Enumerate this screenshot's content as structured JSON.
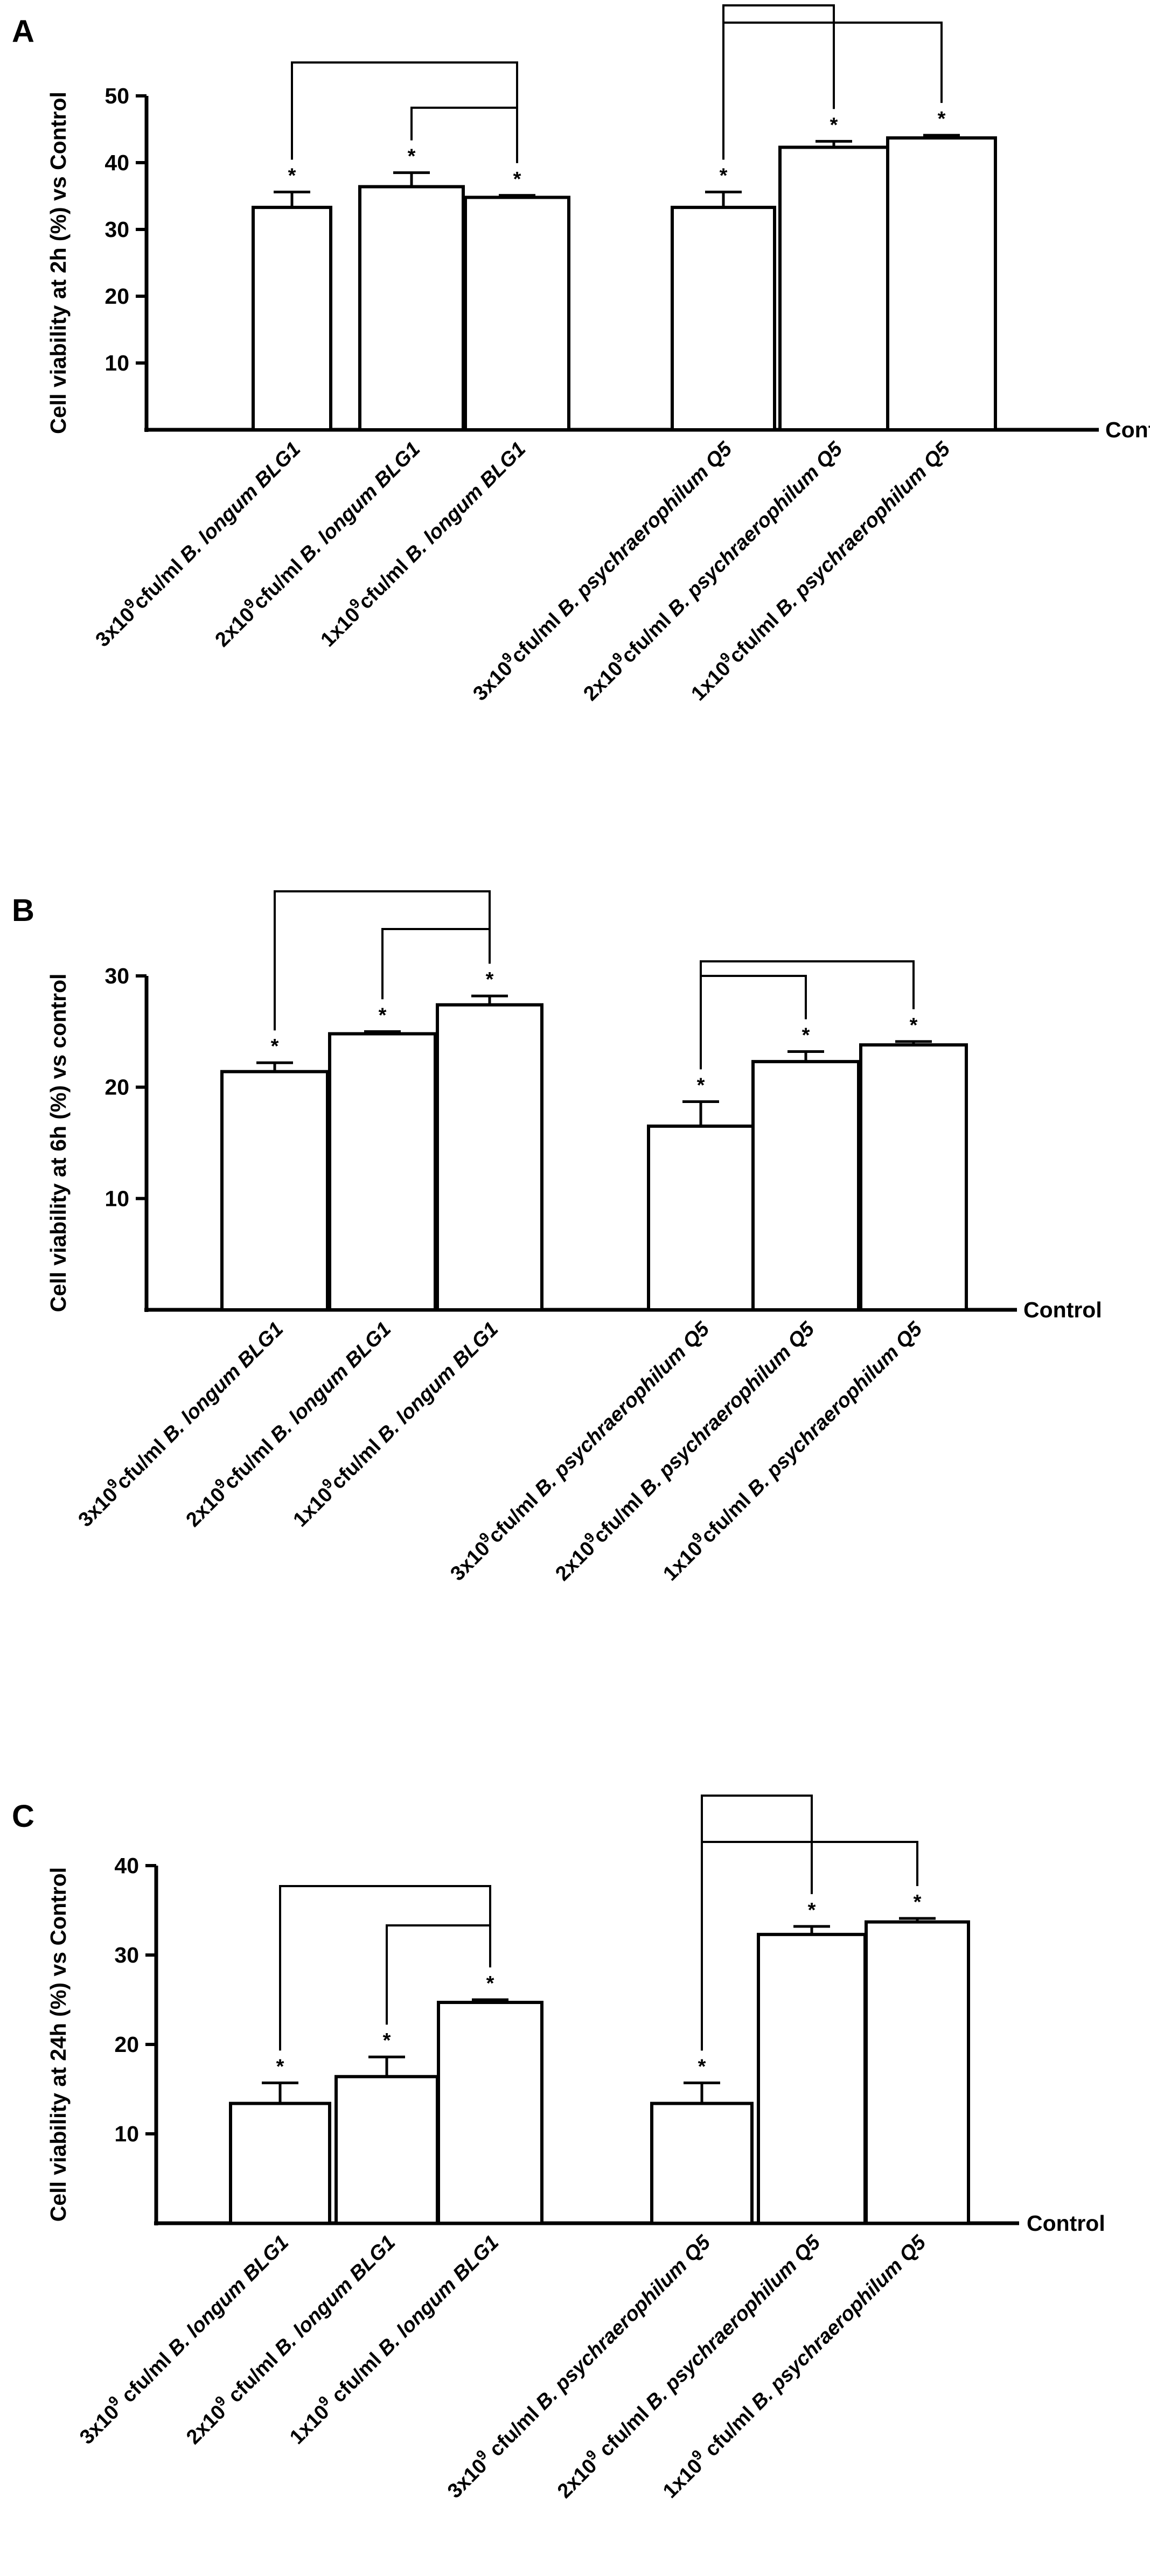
{
  "chart_data": [
    {
      "panel": "A",
      "type": "bar",
      "ylabel": "Cell viability at 2h (%) vs Control",
      "baseline_label": "Control",
      "yticks": [
        10,
        20,
        30,
        40,
        50
      ],
      "ylim": [
        0,
        50
      ],
      "categories": [
        {
          "prefix": "3x10",
          "sup": "9",
          "mid": "cfu/ml ",
          "species": "B. longum BLG1"
        },
        {
          "prefix": "2x10",
          "sup": "9",
          "mid": "cfu/ml ",
          "species": "B. longum BLG1"
        },
        {
          "prefix": "1x10",
          "sup": "9",
          "mid": "cfu/ml ",
          "species": "B. longum BLG1"
        },
        {
          "prefix": "3x10",
          "sup": "9",
          "mid": "cfu/ml ",
          "species": "B. psychraerophilum Q5"
        },
        {
          "prefix": "2x10",
          "sup": "9",
          "mid": "cfu/ml ",
          "species": "B. psychraerophilum Q5"
        },
        {
          "prefix": "1x10",
          "sup": "9",
          "mid": "cfu/ml ",
          "species": "B. psychraerophilum Q5"
        }
      ],
      "values": [
        33.3,
        36.4,
        34.8,
        33.3,
        42.3,
        43.7
      ],
      "errors": [
        2.3,
        2.1,
        0.3,
        2.3,
        0.9,
        0.4
      ],
      "significance": [
        "*",
        "*",
        "*",
        "*",
        "*",
        "*"
      ],
      "brackets": [
        [
          0,
          2
        ],
        [
          1,
          2
        ],
        [
          3,
          4
        ],
        [
          3,
          5
        ]
      ]
    },
    {
      "panel": "B",
      "type": "bar",
      "ylabel": "Cell viability at 6h (%) vs control",
      "baseline_label": "Control",
      "yticks": [
        10,
        20,
        30
      ],
      "ylim": [
        0,
        30
      ],
      "categories": [
        {
          "prefix": "3x10",
          "sup": "9",
          "mid": "cfu/ml ",
          "species": "B. longum BLG1"
        },
        {
          "prefix": "2x10",
          "sup": "9",
          "mid": "cfu/ml ",
          "species": "B. longum BLG1"
        },
        {
          "prefix": "1x10",
          "sup": "9",
          "mid": "cfu/ml ",
          "species": "B. longum BLG1"
        },
        {
          "prefix": "3x10",
          "sup": "9",
          "mid": "cfu/ml ",
          "species": "B. psychraerophilum Q5"
        },
        {
          "prefix": "2x10",
          "sup": "9",
          "mid": "cfu/ml ",
          "species": "B. psychraerophilum Q5"
        },
        {
          "prefix": "1x10",
          "sup": "9",
          "mid": "cfu/ml ",
          "species": "B. psychraerophilum Q5"
        }
      ],
      "values": [
        21.4,
        24.8,
        27.4,
        16.5,
        22.3,
        23.8
      ],
      "errors": [
        0.8,
        0.2,
        0.8,
        2.2,
        0.9,
        0.3
      ],
      "significance": [
        "*",
        "*",
        "*",
        "*",
        "*",
        "*"
      ],
      "brackets": [
        [
          0,
          2
        ],
        [
          1,
          2
        ],
        [
          3,
          4
        ],
        [
          3,
          5
        ]
      ]
    },
    {
      "panel": "C",
      "type": "bar",
      "ylabel": "Cell viability at 24h (%) vs Control",
      "baseline_label": "Control",
      "yticks": [
        10,
        20,
        30,
        40
      ],
      "ylim": [
        0,
        40
      ],
      "categories": [
        {
          "prefix": "3x10",
          "sup": "9",
          "mid": " cfu/ml ",
          "species": "B. longum BLG1"
        },
        {
          "prefix": "2x10",
          "sup": "9",
          "mid": " cfu/ml ",
          "species": "B. longum BLG1"
        },
        {
          "prefix": "1x10",
          "sup": "9",
          "mid": " cfu/ml ",
          "species": "B. longum BLG1"
        },
        {
          "prefix": "3x10",
          "sup": "9",
          "mid": " cfu/ml ",
          "species": "B. psychraerophilum Q5"
        },
        {
          "prefix": "2x10",
          "sup": "9",
          "mid": " cfu/ml ",
          "species": "B. psychraerophilum Q5"
        },
        {
          "prefix": "1x10",
          "sup": "9",
          "mid": " cfu/ml ",
          "species": "B. psychraerophilum Q5"
        }
      ],
      "values": [
        13.4,
        16.4,
        24.7,
        13.4,
        32.3,
        33.7
      ],
      "errors": [
        2.3,
        2.2,
        0.3,
        2.3,
        0.9,
        0.4
      ],
      "significance": [
        "*",
        "*",
        "*",
        "*",
        "*",
        "*"
      ],
      "brackets": [
        [
          0,
          2
        ],
        [
          1,
          2
        ],
        [
          3,
          4
        ],
        [
          3,
          5
        ]
      ]
    }
  ]
}
